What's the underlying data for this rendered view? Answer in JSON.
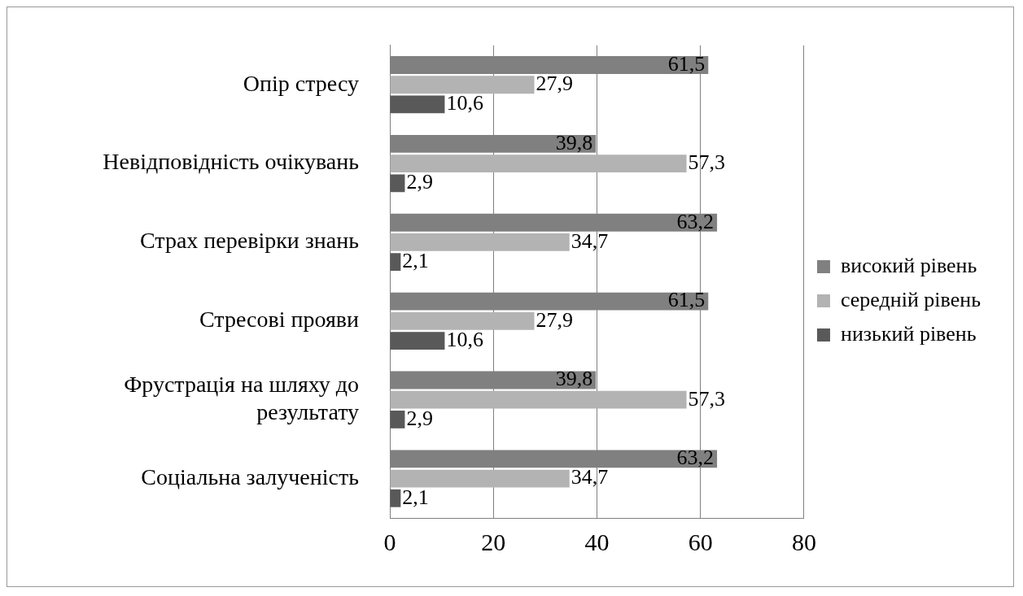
{
  "chart_data": {
    "type": "bar",
    "orientation": "horizontal",
    "categories": [
      "Опір стресу",
      "Невідповідність очікувань",
      "Страх перевірки знань",
      "Стресові прояви",
      "Фрустрація на шляху до результату",
      "Соціальна залученість"
    ],
    "series": [
      {
        "name": "високий рівень",
        "color": "#808080",
        "values": [
          61.5,
          39.8,
          63.2,
          61.5,
          39.8,
          63.2
        ],
        "value_labels": [
          "61,5",
          "39,8",
          "63,2",
          "61,5",
          "39,8",
          "63,2"
        ]
      },
      {
        "name": "середній рівень",
        "color": "#b3b3b3",
        "values": [
          27.9,
          57.3,
          34.7,
          27.9,
          57.3,
          34.7
        ],
        "value_labels": [
          "27,9",
          "57,3",
          "34,7",
          "27,9",
          "57,3",
          "34,7"
        ]
      },
      {
        "name": "низький рівень",
        "color": "#595959",
        "values": [
          10.6,
          2.9,
          2.1,
          10.6,
          2.9,
          2.1
        ],
        "value_labels": [
          "10,6",
          "2,9",
          "2,1",
          "10,6",
          "2,9",
          "2,1"
        ]
      }
    ],
    "xlim": [
      0,
      80
    ],
    "xticks": [
      0,
      20,
      40,
      60,
      80
    ],
    "grid": "x",
    "legend": "right"
  }
}
